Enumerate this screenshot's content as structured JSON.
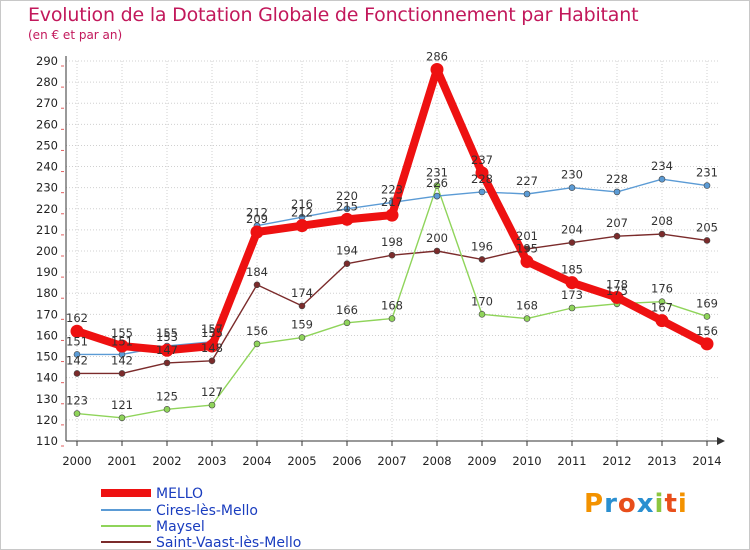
{
  "chart_data": {
    "type": "line",
    "title": "Evolution de la Dotation Globale de Fonctionnement par Habitant",
    "subtitle": "(en € et par an)",
    "xlabel": "",
    "ylabel": "",
    "ylim": [
      110,
      290
    ],
    "yticks": [
      "110",
      "120",
      "130",
      "140",
      "150",
      "160",
      "170",
      "180",
      "190",
      "200",
      "210",
      "220",
      "230",
      "240",
      "250",
      "260",
      "270",
      "280",
      "290"
    ],
    "categories": [
      "2000",
      "2001",
      "2002",
      "2003",
      "2004",
      "2005",
      "2006",
      "2007",
      "2008",
      "2009",
      "2010",
      "2011",
      "2012",
      "2013",
      "2014"
    ],
    "grid": true,
    "legend_position": "bottom-left",
    "series": [
      {
        "name": "Saint-Vaast-lès-Mello",
        "color": "#7b2b2b",
        "values": [
          142,
          142,
          147,
          148,
          184,
          174,
          194,
          198,
          200,
          196,
          201,
          204,
          207,
          208,
          205
        ],
        "labels": [
          "142",
          "142",
          "147",
          "148",
          "184",
          "174",
          "194",
          "198",
          "200",
          "196",
          "201",
          "204",
          "207",
          "208",
          "205"
        ]
      },
      {
        "name": "Maysel",
        "color": "#8fd45a",
        "values": [
          123,
          121,
          125,
          127,
          156,
          159,
          166,
          168,
          231,
          170,
          168,
          173,
          175,
          176,
          169
        ],
        "labels": [
          "123",
          "121",
          "125",
          "127",
          "156",
          "159",
          "166",
          "168",
          "231",
          "170",
          "168",
          "173",
          "175",
          "176",
          "169"
        ]
      },
      {
        "name": "Cires-lès-Mello",
        "color": "#5b9bd5",
        "values": [
          151,
          151,
          155,
          157,
          212,
          216,
          220,
          223,
          226,
          228,
          227,
          230,
          228,
          234,
          231
        ],
        "labels": [
          "151",
          "151",
          "155",
          "157",
          "212",
          "216",
          "220",
          "223",
          "226",
          "228",
          "227",
          "230",
          "228",
          "234",
          "231"
        ]
      },
      {
        "name": "MELLO",
        "color": "#ee1111",
        "values": [
          162,
          155,
          153,
          155,
          209,
          212,
          215,
          217,
          286,
          237,
          195,
          185,
          178,
          167,
          156
        ],
        "labels": [
          "162",
          "155",
          "153",
          "155",
          "209",
          "212",
          "215",
          "217",
          "286",
          "237",
          "195",
          "185",
          "178",
          "167",
          "156"
        ]
      }
    ]
  },
  "legend": {
    "items": [
      {
        "name": "MELLO",
        "color": "#ee1111"
      },
      {
        "name": "Cires-lès-Mello",
        "color": "#5b9bd5"
      },
      {
        "name": "Maysel",
        "color": "#8fd45a"
      },
      {
        "name": "Saint-Vaast-lès-Mello",
        "color": "#7b2b2b"
      }
    ]
  },
  "branding": {
    "logo_text": "Proxiti",
    "letters": [
      "P",
      "r",
      "o",
      "x",
      "i",
      "t",
      "i"
    ],
    "letter_colors": [
      "#f39200",
      "#2a8fd0",
      "#e84e1b",
      "#2a8fd0",
      "#8cc63f",
      "#e84e1b",
      "#f39200"
    ]
  }
}
